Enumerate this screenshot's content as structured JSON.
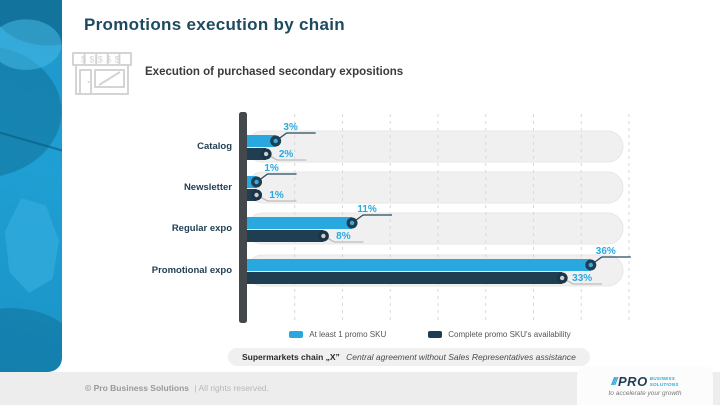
{
  "slide": {
    "title": "Promotions execution by chain",
    "subtitle": "Execution of purchased secondary expositions"
  },
  "chart_data": {
    "type": "bar",
    "orientation": "horizontal",
    "title": "Execution of purchased secondary expositions",
    "xlabel": "",
    "ylabel": "",
    "categories": [
      "Catalog",
      "Newsletter",
      "Regular expo",
      "Promotional expo"
    ],
    "series": [
      {
        "name": "At least 1 promo SKU",
        "color": "#29a8df",
        "values": [
          3,
          1,
          11,
          36
        ]
      },
      {
        "name": "Complete promo SKU's availability",
        "color": "#1f3e52",
        "values": [
          2,
          1,
          8,
          33
        ]
      }
    ],
    "value_suffix": "%",
    "value_label_color": "#29a8df",
    "xlim": [
      0,
      40
    ],
    "gridline_step": 5,
    "grid": true,
    "legend_position": "bottom"
  },
  "footnote": {
    "chain": "Supermarkets chain „X”",
    "detail": "Central agreement without Sales Representatives assistance"
  },
  "footer": {
    "copyright": "© Pro Business Solutions",
    "rights": "| All rights reserved."
  },
  "logo": {
    "slashes": "///",
    "name": "PRO",
    "line1": "BUSINESS",
    "line2": "SOLUTIONS",
    "tagline": "to accelerate your growth"
  },
  "colors": {
    "accent_light_blue": "#29a8df",
    "accent_navy": "#1f3e52",
    "title_navy": "#1d4a5f",
    "sidebar_cyan": "#1f9fd3"
  }
}
